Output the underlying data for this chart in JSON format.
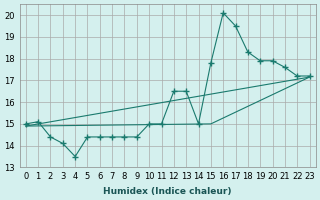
{
  "xlabel": "Humidex (Indice chaleur)",
  "ylabel": "",
  "xlim": [
    -0.5,
    23.5
  ],
  "ylim": [
    13,
    20.5
  ],
  "yticks": [
    13,
    14,
    15,
    16,
    17,
    18,
    19,
    20
  ],
  "xticks": [
    0,
    1,
    2,
    3,
    4,
    5,
    6,
    7,
    8,
    9,
    10,
    11,
    12,
    13,
    14,
    15,
    16,
    17,
    18,
    19,
    20,
    21,
    22,
    23
  ],
  "background_color": "#d4f0ee",
  "grid_color": "#aaaaaa",
  "line_color": "#1a7a6e",
  "series": [
    {
      "x": [
        0,
        1,
        2,
        3,
        4,
        5,
        6,
        7,
        8,
        9,
        10,
        11,
        12,
        13,
        14,
        15,
        16,
        17,
        18,
        19,
        20,
        21,
        22,
        23
      ],
      "y": [
        15.0,
        15.1,
        14.4,
        14.1,
        13.5,
        14.4,
        14.4,
        14.4,
        14.4,
        14.4,
        15.0,
        15.0,
        16.5,
        16.5,
        15.0,
        17.8,
        20.1,
        19.5,
        18.3,
        17.9,
        17.9,
        17.6,
        17.2,
        17.2
      ],
      "has_markers": true
    },
    {
      "x": [
        0,
        23
      ],
      "y": [
        14.9,
        17.15
      ],
      "has_markers": false
    },
    {
      "x": [
        0,
        15,
        23
      ],
      "y": [
        14.9,
        15.0,
        17.15
      ],
      "has_markers": false
    }
  ]
}
